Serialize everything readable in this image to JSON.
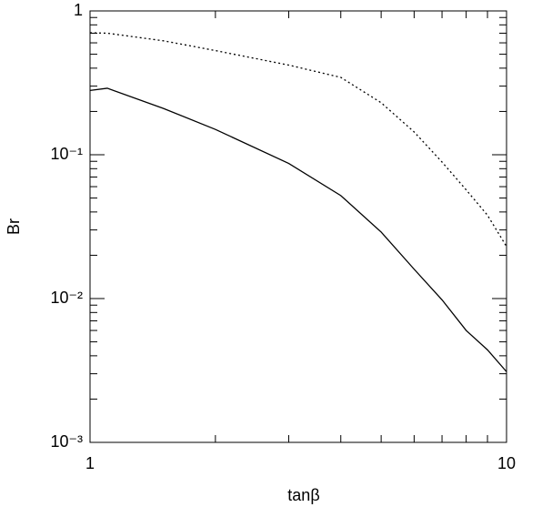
{
  "chart_data": {
    "type": "line",
    "x_label": "tanβ",
    "y_label": "Br",
    "x": [
      1,
      1.1,
      1.5,
      2,
      3,
      4,
      5,
      6,
      7,
      8,
      9,
      10
    ],
    "series": [
      {
        "color": "#000000",
        "dash": "2,3",
        "values": [
          0.705,
          0.7,
          0.62,
          0.53,
          0.42,
          0.345,
          0.23,
          0.144,
          0.089,
          0.057,
          0.038,
          0.023
        ]
      },
      {
        "color": "#000000",
        "values": [
          0.28,
          0.29,
          0.21,
          0.15,
          0.087,
          0.052,
          0.029,
          0.016,
          0.0098,
          0.006,
          0.0044,
          0.0031
        ]
      }
    ],
    "xlog": true,
    "ylog": true,
    "xlim": [
      1,
      10
    ],
    "ylim": [
      0.001,
      1
    ],
    "xticks": [
      1,
      10
    ],
    "yticks": [
      {
        "value": 0.001,
        "label": "10⁻³"
      },
      {
        "value": 0.01,
        "label": "10⁻²"
      },
      {
        "value": 0.1,
        "label": "10⁻¹"
      },
      1
    ],
    "xminorticks": [
      2,
      3,
      4,
      5,
      6,
      7,
      8,
      9
    ],
    "yminorticks": [
      0.002,
      0.003,
      0.004,
      0.005,
      0.006,
      0.007,
      0.008,
      0.009,
      0.02,
      0.03,
      0.04,
      0.05,
      0.06,
      0.07,
      0.08,
      0.09,
      0.2,
      0.3,
      0.4,
      0.5,
      0.6,
      0.7,
      0.8,
      0.9
    ]
  }
}
